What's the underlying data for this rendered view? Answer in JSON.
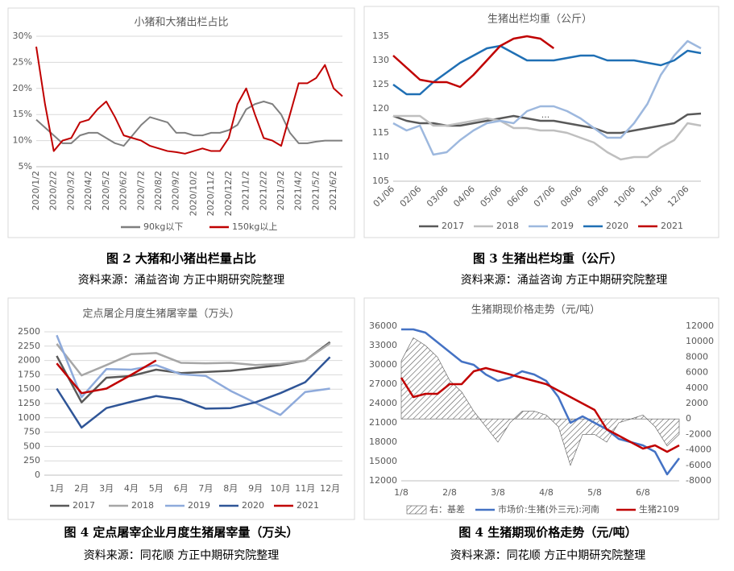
{
  "chart_data": [
    {
      "type": "line",
      "title": "小猪和大猪出栏占比",
      "caption": "图 2 大猪和小猪出栏量占比",
      "source": "资料来源：涌益咨询   方正中期研究院整理",
      "categories": [
        "2020/1/2",
        null,
        "2020/2/2",
        null,
        "2020/3/2",
        null,
        "2020/4/2",
        null,
        "2020/5/2",
        null,
        "2020/6/2",
        null,
        "2020/7/2",
        null,
        "2020/8/2",
        null,
        "2020/9/2",
        null,
        "2020/10/2",
        null,
        "2020/11/2",
        null,
        "2020/12/2",
        null,
        "2021/1/2",
        null,
        "2021/2/2",
        null,
        "2021/3/2",
        null,
        "2021/4/2",
        null,
        "2021/5/2",
        null,
        "2021/6/2",
        null
      ],
      "series": [
        {
          "name": "90kg以下",
          "color": "#7f7f7f",
          "values": [
            14,
            12.5,
            11,
            9.5,
            9.5,
            11,
            11.5,
            11.5,
            10.5,
            9.5,
            9,
            11,
            13,
            14.5,
            14,
            13.5,
            11.5,
            11.5,
            11,
            11,
            11.5,
            11.5,
            12,
            13,
            16,
            17,
            17.5,
            17,
            15,
            11.5,
            9.5,
            9.5,
            9.8,
            10,
            10,
            10
          ]
        },
        {
          "name": "150kg以上",
          "color": "#c00000",
          "values": [
            28,
            17,
            8,
            10,
            10.5,
            13.5,
            14,
            16,
            17.5,
            14.5,
            11,
            10.5,
            10,
            9,
            8.5,
            8,
            7.8,
            7.5,
            8,
            8.5,
            8,
            8,
            10.5,
            17,
            20,
            15,
            10.5,
            10,
            9,
            15,
            21,
            21,
            22,
            24.5,
            20,
            18.5
          ]
        }
      ],
      "ylim": [
        5,
        30
      ],
      "yticks": [
        {
          "value": 5,
          "label": "5%"
        },
        {
          "value": 10,
          "label": "10%"
        },
        {
          "value": 15,
          "label": "15%"
        },
        {
          "value": 20,
          "label": "20%"
        },
        {
          "value": 25,
          "label": "25%"
        },
        {
          "value": 30,
          "label": "30%"
        }
      ],
      "grid": true,
      "legend": "bottom"
    },
    {
      "type": "line",
      "title": "生猪出栏均重（公斤）",
      "caption": "图 3 生猪出栏均重（公斤）",
      "source": "资料来源：涌益咨询   方正中期研究院整理",
      "annotation": "...",
      "categories": [
        "01/06",
        null,
        "02/06",
        null,
        "03/06",
        null,
        "04/06",
        null,
        "05/06",
        null,
        "06/06",
        null,
        "07/06",
        null,
        "08/06",
        null,
        "09/06",
        null,
        "10/06",
        null,
        "11/06",
        null,
        "12/06",
        null
      ],
      "series": [
        {
          "name": "2017",
          "color": "#595959",
          "values": [
            118.5,
            117.5,
            117,
            117,
            116.5,
            116.5,
            117,
            117.5,
            118,
            118.5,
            118,
            117.5,
            117.5,
            117,
            116.5,
            116,
            115,
            115,
            115.5,
            116,
            116.5,
            117,
            118.8,
            119
          ]
        },
        {
          "name": "2018",
          "color": "#bfbfbf",
          "values": [
            118.5,
            118.5,
            118.5,
            116.5,
            116.5,
            117,
            117.5,
            118,
            117.5,
            116,
            116,
            115.5,
            115.5,
            115,
            114,
            113,
            111,
            109.5,
            110,
            110,
            112,
            113.5,
            117,
            116.5
          ]
        },
        {
          "name": "2019",
          "color": "#9db8de",
          "values": [
            117,
            115.5,
            116.5,
            110.5,
            111,
            113.5,
            115.5,
            117,
            117.5,
            117,
            119.5,
            120.5,
            120.5,
            119.5,
            118,
            116,
            114,
            114,
            117,
            121,
            127,
            131,
            134,
            132.5
          ]
        },
        {
          "name": "2020",
          "color": "#1f6fb4",
          "values": [
            125,
            123,
            123,
            125.5,
            127.5,
            129.5,
            131,
            132.5,
            133,
            131.5,
            130,
            130,
            130,
            130.5,
            131,
            131,
            130,
            130,
            130,
            129.5,
            129,
            130,
            132,
            131.5
          ]
        },
        {
          "name": "2021",
          "color": "#c00000",
          "values": [
            131,
            128.5,
            126,
            125.5,
            125.5,
            124.5,
            127,
            130,
            133,
            134.5,
            135,
            134.5,
            132.5,
            null,
            null,
            null,
            null,
            null,
            null,
            null,
            null,
            null,
            null,
            null
          ]
        }
      ],
      "ylim": [
        105,
        135
      ],
      "yticks": [
        105,
        110,
        115,
        120,
        125,
        130,
        135
      ],
      "grid": false,
      "legend": "bottom"
    },
    {
      "type": "line",
      "title": "定点屠企月度生猪屠宰量（万头）",
      "caption": "图 4 定点屠宰企业月度生猪屠宰量（万头）",
      "source": "资料来源：同花顺    方正中期研究院整理",
      "categories": [
        "1月",
        "2月",
        "3月",
        "4月",
        "5月",
        "6月",
        "7月",
        "8月",
        "9月",
        "10月",
        "11月",
        "12月"
      ],
      "series": [
        {
          "name": "2017",
          "color": "#595959",
          "values": [
            2080,
            1270,
            1700,
            1730,
            1840,
            1780,
            1800,
            1820,
            1870,
            1920,
            2000,
            2320
          ]
        },
        {
          "name": "2018",
          "color": "#a6a6a6",
          "values": [
            2290,
            1740,
            1920,
            2110,
            2130,
            1960,
            1950,
            1960,
            1920,
            1940,
            2000,
            2300
          ]
        },
        {
          "name": "2019",
          "color": "#8eaadb",
          "values": [
            2440,
            1360,
            1850,
            1840,
            1920,
            1760,
            1730,
            1470,
            1260,
            1050,
            1450,
            1510
          ]
        },
        {
          "name": "2020",
          "color": "#2f5597",
          "values": [
            1510,
            830,
            1170,
            1280,
            1380,
            1320,
            1160,
            1170,
            1270,
            1430,
            1620,
            2060
          ]
        },
        {
          "name": "2021",
          "color": "#c00000",
          "values": [
            1950,
            1430,
            1510,
            1750,
            2000,
            null,
            null,
            null,
            null,
            null,
            null,
            null
          ]
        }
      ],
      "ylim": [
        0,
        2500
      ],
      "yticks": [
        0,
        250,
        500,
        750,
        1000,
        1250,
        1500,
        1750,
        2000,
        2250,
        2500
      ],
      "grid": true,
      "legend": "bottom"
    },
    {
      "type": "line",
      "title": "生猪期现价格走势（元/吨）",
      "caption": "图 4 生猪期现价格走势（元/吨）",
      "source": "资料来源：同花顺    方正中期研究院整理",
      "categories": [
        "1/8",
        null,
        null,
        null,
        "2/8",
        null,
        null,
        null,
        "3/8",
        null,
        null,
        null,
        "4/8",
        null,
        null,
        null,
        "5/8",
        null,
        null,
        null,
        "6/8",
        null,
        null,
        null
      ],
      "series": [
        {
          "name": "右：基差",
          "type": "area",
          "axis": "y2",
          "color": "#595959",
          "values": [
            7500,
            10500,
            9500,
            8000,
            5000,
            3500,
            1000,
            -1000,
            -3000,
            -500,
            1000,
            1000,
            500,
            -1000,
            -6000,
            -2000,
            -2000,
            -3000,
            -500,
            0,
            500,
            -1000,
            -3500,
            -2000
          ]
        },
        {
          "name": "市场价:生猪(外三元):河南",
          "color": "#4472c4",
          "values": [
            35500,
            35500,
            35000,
            33500,
            32000,
            30500,
            30000,
            28500,
            27500,
            28000,
            29000,
            28500,
            27500,
            25000,
            21000,
            22000,
            21000,
            20000,
            18500,
            18000,
            17500,
            16500,
            13000,
            15500
          ]
        },
        {
          "name": "生猪2109",
          "color": "#c00000",
          "values": [
            28000,
            25000,
            25500,
            25500,
            27000,
            27000,
            29000,
            29500,
            29000,
            28500,
            28000,
            27500,
            27000,
            26000,
            25000,
            24000,
            23000,
            20000,
            19000,
            18000,
            17000,
            17500,
            16500,
            17500
          ]
        }
      ],
      "ylim": [
        12000,
        36000
      ],
      "yticks": [
        12000,
        15000,
        18000,
        21000,
        24000,
        27000,
        30000,
        33000,
        36000
      ],
      "y2lim": [
        -8000,
        12000
      ],
      "y2ticks": [
        -8000,
        -6000,
        -4000,
        -2000,
        0,
        2000,
        4000,
        6000,
        8000,
        10000,
        12000
      ],
      "grid": false,
      "legend": "bottom"
    }
  ]
}
